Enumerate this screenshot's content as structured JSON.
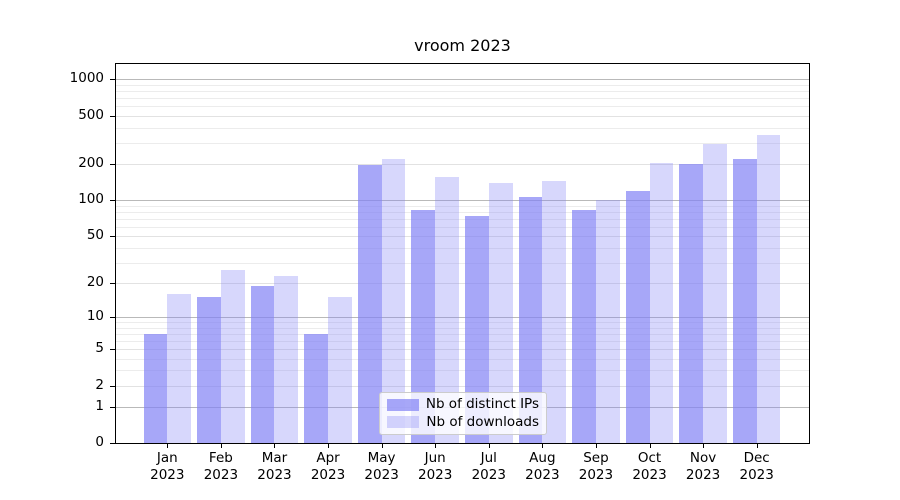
{
  "title": "vroom 2023",
  "chart_data": {
    "type": "bar",
    "title": "vroom 2023",
    "xlabel": "",
    "ylabel": "",
    "scale": "log1p (y position proportional to ln(1+value))",
    "ylim": [
      0,
      1370
    ],
    "grid": "horizontal major + minor, on",
    "legend_position": "lower center",
    "background": "#ffffff",
    "spine_color": "#000000",
    "grid_major_color": "#b9b9b9",
    "grid_minor_color": "#ececec",
    "categories": [
      "Jan",
      "Feb",
      "Mar",
      "Apr",
      "May",
      "Jun",
      "Jul",
      "Aug",
      "Sep",
      "Oct",
      "Nov",
      "Dec"
    ],
    "year_label": "2023",
    "y_ticks": [
      0,
      1,
      2,
      5,
      10,
      20,
      50,
      100,
      200,
      500,
      1000
    ],
    "y_major_ticks": [
      1,
      10,
      100,
      1000
    ],
    "y_minor_gridlines": [
      3,
      4,
      6,
      7,
      8,
      9,
      30,
      40,
      60,
      70,
      80,
      90,
      300,
      400,
      600,
      700,
      800,
      900
    ],
    "series": [
      {
        "name": "Nb of distinct IPs",
        "color": "rgba(130,130,245,0.70)",
        "hex_on_white": "#aaaaf7",
        "values": [
          7,
          15,
          19,
          7,
          195,
          83,
          74,
          107,
          83,
          120,
          200,
          220
        ]
      },
      {
        "name": "Nb of downloads",
        "color": "rgba(130,130,245,0.32)",
        "hex_on_white": "#d9d9f7",
        "values": [
          16,
          26,
          23,
          15,
          220,
          155,
          140,
          145,
          100,
          205,
          295,
          345
        ]
      }
    ]
  },
  "legend": {
    "item1": "Nb of distinct IPs",
    "item2": "Nb of downloads"
  }
}
